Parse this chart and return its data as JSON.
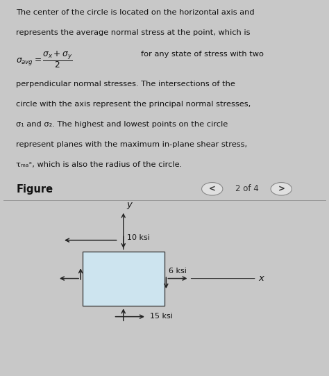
{
  "fig_bg": "#c8c8c8",
  "text_bg": "#b8ccd8",
  "bottom_bg": "#c8c8c8",
  "text_color": "#111111",
  "box_color": "#cde4ef",
  "box_edge_color": "#444444",
  "arrow_color": "#222222",
  "sep_color": "#999999",
  "nav_circle_color": "#e0e0e0",
  "nav_text_color": "#333333",
  "figure_label": "Figure",
  "page_label": "2 of 4",
  "stress_10": "10 ksi",
  "stress_6": "6 ksi",
  "stress_15": "15 ksi",
  "axis_x": "x",
  "axis_y": "y",
  "line1": "The center of the circle is located on the horizontal axis and",
  "line2": "represents the average normal stress at the point, which is",
  "line3": "for any state of stress with two",
  "line4": "perpendicular normal stresses. The intersections of the",
  "line5": "circle with the axis represent the principal normal stresses,",
  "line6": "σ₁ and σ₂. The highest and lowest points on the circle",
  "line7": "represent planes with the maximum in-plane shear stress,",
  "line8": "τₘₐˣ, which is also the radius of the circle.",
  "text_fontsize": 8.2,
  "figure_fontsize": 10.5,
  "nav_fontsize": 8.5,
  "label_fontsize": 9.5,
  "stress_fontsize": 8.0
}
